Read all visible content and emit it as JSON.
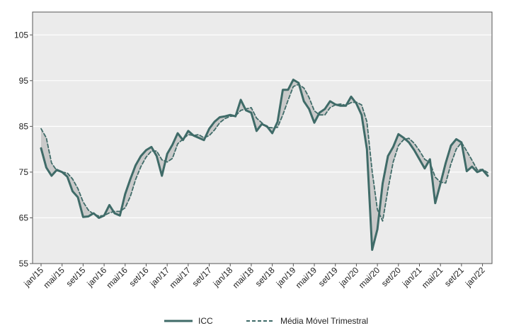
{
  "chart_data": {
    "type": "line",
    "title": "",
    "xlabel": "",
    "ylabel": "",
    "ylim": [
      55,
      110
    ],
    "yticks": [
      55,
      65,
      75,
      85,
      95,
      105
    ],
    "xtick_labels": [
      "jan/15",
      "mai/15",
      "set/15",
      "jan/16",
      "mai/16",
      "set/16",
      "jan/17",
      "mai/17",
      "set/17",
      "jan/18",
      "mai/18",
      "set/18",
      "jan/19",
      "mai/19",
      "set/19",
      "jan/20",
      "mai/20",
      "set/20",
      "jan/21",
      "mai/21",
      "set/21",
      "jan/22"
    ],
    "grid": "horizontal",
    "legend_position": "bottom",
    "colors": {
      "plot_bg": "#ebebeb",
      "series": "#3f6b68",
      "grid": "#ffffff",
      "band": "#c9c9c9"
    },
    "series": [
      {
        "name": "ICC",
        "style": "solid",
        "values": [
          80.2,
          76.0,
          74.2,
          75.5,
          75.0,
          74.0,
          70.8,
          69.5,
          65.2,
          65.3,
          66.0,
          65.0,
          65.5,
          67.8,
          66.0,
          65.5,
          70.2,
          73.5,
          76.5,
          78.5,
          79.8,
          80.5,
          78.5,
          74.2,
          79.0,
          81.0,
          83.5,
          82.0,
          84.0,
          83.0,
          82.5,
          82.0,
          84.5,
          86.0,
          87.0,
          87.2,
          87.5,
          87.2,
          90.8,
          88.5,
          88.0,
          84.0,
          85.5,
          85.0,
          83.5,
          86.0,
          93.0,
          93.0,
          95.2,
          94.5,
          90.5,
          88.8,
          85.8,
          88.0,
          88.8,
          90.5,
          89.8,
          89.5,
          89.5,
          91.5,
          90.0,
          87.5,
          80.0,
          58.0,
          62.5,
          72.5,
          78.5,
          80.5,
          83.3,
          82.5,
          81.5,
          79.8,
          77.8,
          75.8,
          77.8,
          68.2,
          72.5,
          77.0,
          80.8,
          82.2,
          81.5,
          75.2,
          76.2,
          75.0,
          75.5,
          74.2
        ]
      },
      {
        "name": "Média Móvel Trimestral",
        "style": "dashed",
        "values": [
          84.5,
          82.5,
          77.0,
          75.3,
          75.0,
          74.8,
          73.5,
          71.4,
          68.5,
          66.7,
          65.8,
          65.4,
          65.5,
          66.1,
          66.4,
          66.4,
          67.2,
          69.7,
          73.4,
          76.2,
          78.3,
          79.6,
          79.6,
          77.7,
          77.2,
          78.0,
          81.2,
          82.2,
          83.2,
          83.0,
          83.2,
          82.5,
          83.0,
          84.2,
          85.8,
          86.7,
          87.2,
          87.3,
          88.5,
          88.8,
          89.1,
          86.8,
          85.8,
          84.8,
          84.7,
          84.8,
          87.5,
          90.7,
          93.7,
          94.2,
          93.4,
          91.3,
          88.4,
          87.5,
          87.5,
          89.1,
          89.7,
          89.9,
          89.6,
          90.2,
          90.3,
          89.7,
          86.0,
          75.2,
          66.8,
          64.3,
          71.2,
          77.2,
          80.8,
          82.1,
          82.4,
          81.3,
          79.7,
          77.8,
          77.1,
          73.9,
          72.8,
          72.6,
          76.8,
          80.0,
          81.5,
          79.6,
          77.6,
          75.5,
          75.6,
          74.9
        ]
      }
    ]
  }
}
